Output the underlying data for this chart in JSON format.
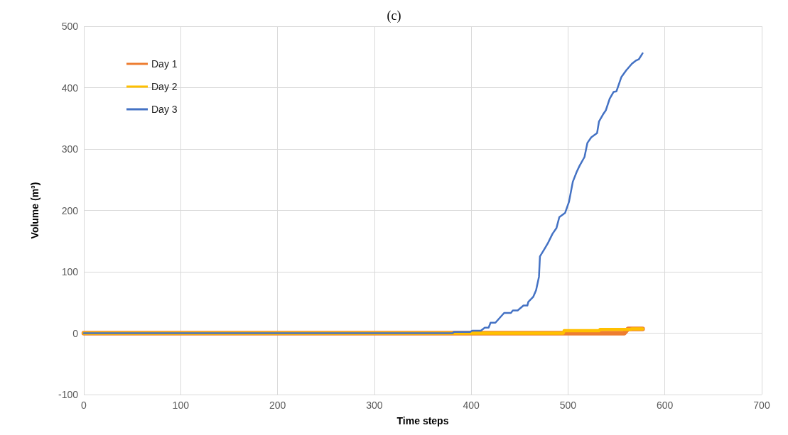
{
  "chart_data": {
    "type": "line",
    "title": "(c)",
    "xlabel": "Time steps",
    "ylabel": "Volume (m³)",
    "xlim": [
      0,
      700
    ],
    "xticks": [
      0,
      100,
      200,
      300,
      400,
      500,
      600,
      700
    ],
    "ylim": [
      -100,
      500
    ],
    "yticks": [
      -100,
      0,
      100,
      200,
      300,
      400,
      500
    ],
    "grid": true,
    "legend": "top left",
    "marker": "none",
    "line_style": "solid",
    "series": [
      {
        "name": "Day 1",
        "color": "#ed7d31",
        "x": [
          0,
          496,
          558,
          562,
          577
        ],
        "values": [
          0,
          0,
          0,
          7,
          7
        ]
      },
      {
        "name": "Day 2",
        "color": "#ffc000",
        "x": [
          0,
          495,
          496,
          532,
          533,
          564,
          566,
          577
        ],
        "values": [
          0,
          0,
          4,
          4,
          6,
          6,
          7,
          7
        ]
      },
      {
        "name": "Day 3",
        "color": "#4472c4",
        "x": [
          0,
          381,
          382,
          399,
          401,
          410,
          414,
          418,
          420,
          425,
          434,
          441,
          443,
          448,
          454,
          458,
          459,
          464,
          467,
          470,
          471,
          476,
          479,
          484,
          488,
          491,
          497,
          501,
          505,
          509,
          512,
          517,
          520,
          524,
          530,
          532,
          536,
          539,
          543,
          547,
          550,
          555,
          560,
          566,
          570,
          573,
          577
        ],
        "values": [
          0,
          0,
          2,
          2,
          4,
          4,
          9,
          9,
          17,
          17,
          33,
          33,
          37,
          37,
          45,
          45,
          51,
          59,
          70,
          92,
          125,
          138,
          146,
          162,
          171,
          189,
          196,
          214,
          247,
          263,
          273,
          287,
          310,
          319,
          326,
          345,
          356,
          363,
          382,
          393,
          394,
          417,
          428,
          439,
          444,
          446,
          456
        ]
      }
    ]
  }
}
